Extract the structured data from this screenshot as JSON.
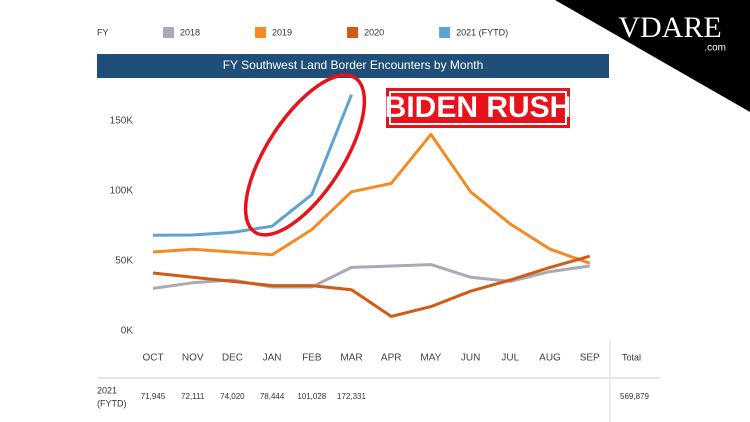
{
  "chart_data": {
    "type": "line",
    "title": "FY Southwest Land Border Encounters by Month",
    "legend_title": "FY",
    "annotation": "BIDEN RUSH",
    "watermark": "VDARE",
    "watermark_sub": ".com",
    "categories": [
      "OCT",
      "NOV",
      "DEC",
      "JAN",
      "FEB",
      "MAR",
      "APR",
      "MAY",
      "JUN",
      "JUL",
      "AUG",
      "SEP"
    ],
    "ylim": [
      0,
      180000
    ],
    "yticks": [
      {
        "value": 0,
        "label": "0K"
      },
      {
        "value": 50000,
        "label": "50K"
      },
      {
        "value": 100000,
        "label": "100K"
      },
      {
        "value": 150000,
        "label": "150K"
      }
    ],
    "grid": false,
    "series": [
      {
        "name": "2018",
        "color": "#a9a9b8",
        "values": [
          34000,
          38000,
          40000,
          35000,
          35000,
          49000,
          50000,
          51000,
          42000,
          39000,
          46000,
          50000
        ]
      },
      {
        "name": "2019",
        "color": "#f58a23",
        "values": [
          60000,
          62000,
          60000,
          58000,
          76000,
          103000,
          109000,
          144000,
          103000,
          80000,
          62000,
          52000
        ]
      },
      {
        "name": "2020",
        "color": "#d25a12",
        "values": [
          45000,
          42000,
          39000,
          36000,
          36000,
          33000,
          14000,
          21000,
          32000,
          40000,
          49000,
          57000
        ]
      },
      {
        "name": "2021 (FYTD)",
        "color": "#5ea3d2",
        "values": [
          71945,
          72111,
          74020,
          78444,
          101028,
          172331,
          null,
          null,
          null,
          null,
          null,
          null
        ],
        "value_labels": [
          "71,945",
          "72,111",
          "74,020",
          "78,444",
          "101,028",
          "172,331",
          null,
          null,
          null,
          null,
          null,
          null
        ]
      }
    ],
    "table": {
      "row_label": [
        "2021",
        "(FYTD)"
      ],
      "total_header": "Total",
      "total": "569,879"
    }
  }
}
